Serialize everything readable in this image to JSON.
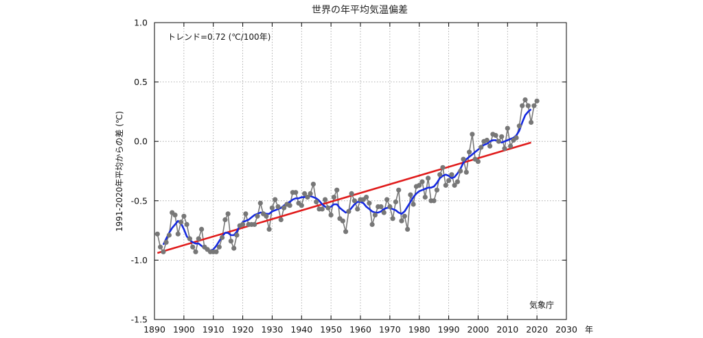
{
  "chart_data": {
    "type": "line",
    "title": "世界の年平均気温偏差",
    "xlabel": "年",
    "ylabel": "1991-2020年平均からの差 (℃)",
    "xlim": [
      1890,
      2030
    ],
    "ylim": [
      -1.5,
      1.0
    ],
    "x_ticks": [
      "1890",
      "1900",
      "1910",
      "1920",
      "1930",
      "1940",
      "1950",
      "1960",
      "1970",
      "1980",
      "1990",
      "2000",
      "2010",
      "2020",
      "2030"
    ],
    "y_ticks": [
      "1.0",
      "0.5",
      "0.0",
      "-0.5",
      "-1.0",
      "-1.5"
    ],
    "grid": true,
    "annotation": "トレンド=0.72 (℃/100年)",
    "source": "気象庁",
    "colors": {
      "annual": "#777777",
      "moving_average": "#1428e0",
      "trend": "#e01b1b"
    },
    "series": [
      {
        "style": "points-line",
        "x": [
          1891,
          1892,
          1893,
          1894,
          1895,
          1896,
          1897,
          1898,
          1899,
          1900,
          1901,
          1902,
          1903,
          1904,
          1905,
          1906,
          1907,
          1908,
          1909,
          1910,
          1911,
          1912,
          1913,
          1914,
          1915,
          1916,
          1917,
          1918,
          1919,
          1920,
          1921,
          1922,
          1923,
          1924,
          1925,
          1926,
          1927,
          1928,
          1929,
          1930,
          1931,
          1932,
          1933,
          1934,
          1935,
          1936,
          1937,
          1938,
          1939,
          1940,
          1941,
          1942,
          1943,
          1944,
          1945,
          1946,
          1947,
          1948,
          1949,
          1950,
          1951,
          1952,
          1953,
          1954,
          1955,
          1956,
          1957,
          1958,
          1959,
          1960,
          1961,
          1962,
          1963,
          1964,
          1965,
          1966,
          1967,
          1968,
          1969,
          1970,
          1971,
          1972,
          1973,
          1974,
          1975,
          1976,
          1977,
          1978,
          1979,
          1980,
          1981,
          1982,
          1983,
          1984,
          1985,
          1986,
          1987,
          1988,
          1989,
          1990,
          1991,
          1992,
          1993,
          1994,
          1995,
          1996,
          1997,
          1998,
          1999,
          2000,
          2001,
          2002,
          2003,
          2004,
          2005,
          2006,
          2007,
          2008,
          2009,
          2010,
          2011,
          2012,
          2013,
          2014,
          2015,
          2016,
          2017,
          2018,
          2019,
          2020
        ],
        "values": [
          -0.78,
          -0.89,
          -0.93,
          -0.85,
          -0.79,
          -0.6,
          -0.62,
          -0.78,
          -0.68,
          -0.63,
          -0.7,
          -0.82,
          -0.89,
          -0.93,
          -0.82,
          -0.74,
          -0.89,
          -0.91,
          -0.93,
          -0.93,
          -0.93,
          -0.89,
          -0.81,
          -0.66,
          -0.61,
          -0.84,
          -0.9,
          -0.79,
          -0.71,
          -0.7,
          -0.61,
          -0.7,
          -0.7,
          -0.7,
          -0.63,
          -0.52,
          -0.61,
          -0.63,
          -0.74,
          -0.56,
          -0.49,
          -0.55,
          -0.66,
          -0.56,
          -0.53,
          -0.54,
          -0.43,
          -0.43,
          -0.52,
          -0.54,
          -0.44,
          -0.47,
          -0.44,
          -0.36,
          -0.51,
          -0.57,
          -0.57,
          -0.49,
          -0.56,
          -0.62,
          -0.47,
          -0.41,
          -0.65,
          -0.67,
          -0.76,
          -0.59,
          -0.44,
          -0.5,
          -0.57,
          -0.49,
          -0.49,
          -0.47,
          -0.52,
          -0.7,
          -0.62,
          -0.55,
          -0.55,
          -0.6,
          -0.49,
          -0.55,
          -0.65,
          -0.51,
          -0.41,
          -0.67,
          -0.63,
          -0.74,
          -0.45,
          -0.53,
          -0.38,
          -0.37,
          -0.34,
          -0.47,
          -0.31,
          -0.5,
          -0.5,
          -0.41,
          -0.28,
          -0.22,
          -0.37,
          -0.33,
          -0.28,
          -0.37,
          -0.34,
          -0.25,
          -0.15,
          -0.26,
          -0.09,
          0.06,
          -0.15,
          -0.17,
          -0.05,
          0.0,
          0.01,
          -0.04,
          0.06,
          0.05,
          0.0,
          0.04,
          -0.06,
          0.11,
          -0.04,
          0.01,
          0.03,
          0.13,
          0.3,
          0.35,
          0.3,
          0.16,
          0.3,
          0.34
        ]
      },
      {
        "style": "line",
        "x": [
          1893,
          1894,
          1895,
          1896,
          1897,
          1898,
          1899,
          1900,
          1901,
          1902,
          1903,
          1904,
          1905,
          1906,
          1907,
          1908,
          1909,
          1910,
          1911,
          1912,
          1913,
          1914,
          1915,
          1916,
          1917,
          1918,
          1919,
          1920,
          1921,
          1922,
          1923,
          1924,
          1925,
          1926,
          1927,
          1928,
          1929,
          1930,
          1931,
          1932,
          1933,
          1934,
          1935,
          1936,
          1937,
          1938,
          1939,
          1940,
          1941,
          1942,
          1943,
          1944,
          1945,
          1946,
          1947,
          1948,
          1949,
          1950,
          1951,
          1952,
          1953,
          1954,
          1955,
          1956,
          1957,
          1958,
          1959,
          1960,
          1961,
          1962,
          1963,
          1964,
          1965,
          1966,
          1967,
          1968,
          1969,
          1970,
          1971,
          1972,
          1973,
          1974,
          1975,
          1976,
          1977,
          1978,
          1979,
          1980,
          1981,
          1982,
          1983,
          1984,
          1985,
          1986,
          1987,
          1988,
          1989,
          1990,
          1991,
          1992,
          1993,
          1994,
          1995,
          1996,
          1997,
          1998,
          1999,
          2000,
          2001,
          2002,
          2003,
          2004,
          2005,
          2006,
          2007,
          2008,
          2009,
          2010,
          2011,
          2012,
          2013,
          2014,
          2015,
          2016,
          2017,
          2018
        ],
        "values": [
          -0.87,
          -0.82,
          -0.77,
          -0.73,
          -0.7,
          -0.67,
          -0.69,
          -0.74,
          -0.8,
          -0.83,
          -0.85,
          -0.86,
          -0.86,
          -0.88,
          -0.9,
          -0.92,
          -0.92,
          -0.91,
          -0.88,
          -0.84,
          -0.8,
          -0.77,
          -0.77,
          -0.79,
          -0.79,
          -0.76,
          -0.71,
          -0.68,
          -0.67,
          -0.66,
          -0.64,
          -0.62,
          -0.61,
          -0.6,
          -0.6,
          -0.61,
          -0.61,
          -0.59,
          -0.58,
          -0.57,
          -0.56,
          -0.54,
          -0.52,
          -0.51,
          -0.49,
          -0.48,
          -0.48,
          -0.47,
          -0.47,
          -0.46,
          -0.46,
          -0.47,
          -0.48,
          -0.5,
          -0.53,
          -0.55,
          -0.56,
          -0.55,
          -0.53,
          -0.53,
          -0.56,
          -0.58,
          -0.6,
          -0.59,
          -0.56,
          -0.53,
          -0.51,
          -0.51,
          -0.52,
          -0.55,
          -0.57,
          -0.59,
          -0.6,
          -0.6,
          -0.59,
          -0.57,
          -0.56,
          -0.56,
          -0.57,
          -0.58,
          -0.6,
          -0.61,
          -0.59,
          -0.55,
          -0.51,
          -0.47,
          -0.44,
          -0.42,
          -0.41,
          -0.4,
          -0.39,
          -0.39,
          -0.38,
          -0.35,
          -0.31,
          -0.29,
          -0.28,
          -0.29,
          -0.31,
          -0.3,
          -0.27,
          -0.23,
          -0.18,
          -0.15,
          -0.13,
          -0.11,
          -0.09,
          -0.07,
          -0.05,
          -0.03,
          -0.02,
          0.0,
          0.01,
          0.01,
          0.0,
          -0.01,
          0.0,
          0.01,
          0.02,
          0.03,
          0.05,
          0.09,
          0.16,
          0.22,
          0.25,
          0.27
        ]
      },
      {
        "style": "line",
        "x": [
          1891,
          2018
        ],
        "values": [
          -0.94,
          -0.01
        ]
      }
    ]
  }
}
